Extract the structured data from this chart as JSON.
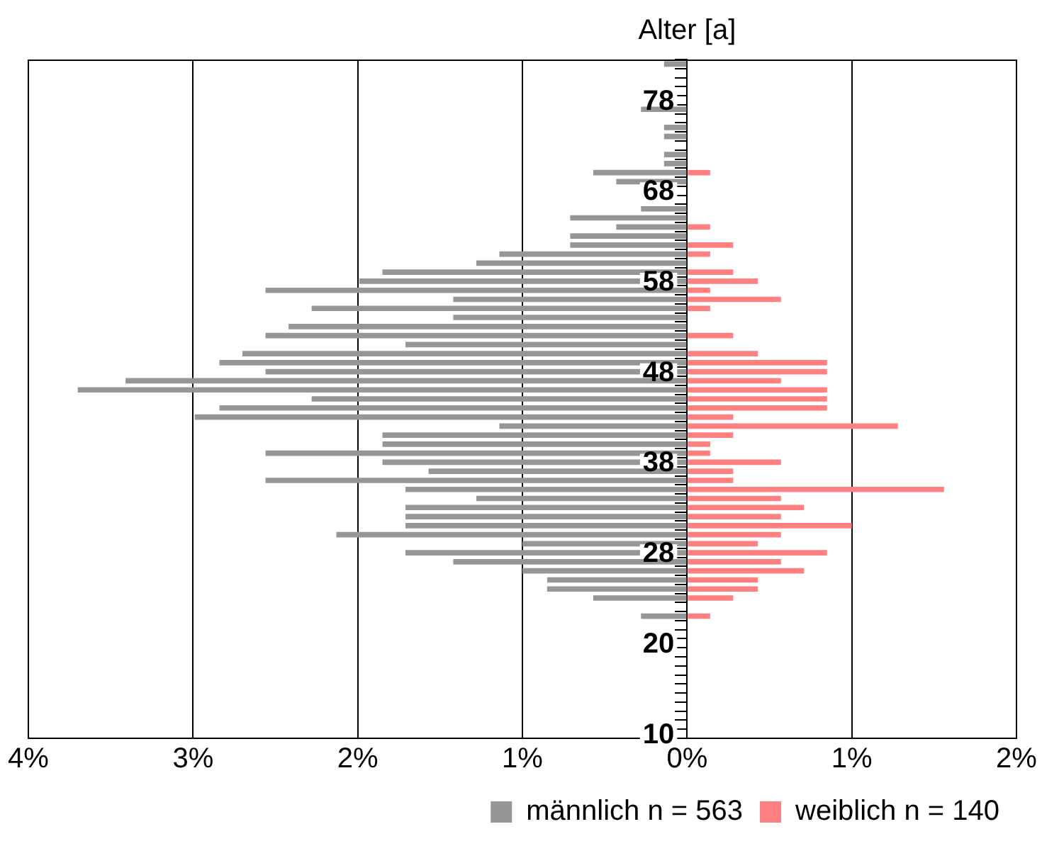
{
  "chart_data": {
    "type": "bar",
    "orientation": "horizontal",
    "ylabel": "Alter [a]",
    "categories": [
      null,
      null,
      null,
      null,
      "78",
      null,
      null,
      null,
      null,
      null,
      null,
      null,
      null,
      null,
      "68",
      null,
      null,
      null,
      null,
      null,
      null,
      null,
      null,
      null,
      "58",
      null,
      null,
      null,
      null,
      null,
      null,
      null,
      null,
      null,
      "48",
      null,
      null,
      null,
      null,
      null,
      null,
      null,
      null,
      null,
      "38",
      null,
      null,
      null,
      null,
      null,
      null,
      null,
      null,
      null,
      "28",
      null,
      null,
      null,
      null,
      null,
      null,
      null,
      null,
      null,
      "20",
      null,
      null,
      null,
      null,
      null,
      null,
      null,
      null,
      null,
      "10"
    ],
    "series": [
      {
        "name": "männlich n = 563",
        "color": "#969696",
        "values": [
          -0.14,
          null,
          null,
          null,
          null,
          -0.28,
          null,
          -0.14,
          -0.14,
          null,
          -0.14,
          -0.14,
          -0.57,
          -0.43,
          null,
          null,
          -0.28,
          -0.71,
          -0.43,
          -0.71,
          -0.71,
          -1.14,
          -1.28,
          -1.85,
          -1.99,
          -2.56,
          -1.42,
          -2.28,
          -1.42,
          -2.42,
          -2.56,
          -1.71,
          -2.7,
          -2.84,
          -2.56,
          -3.41,
          -3.7,
          -2.28,
          -2.84,
          -2.99,
          -1.14,
          -1.85,
          -1.85,
          -2.56,
          -1.85,
          -1.57,
          -2.56,
          -1.71,
          -1.28,
          -1.71,
          -1.71,
          -1.71,
          -2.13,
          -1.0,
          -1.71,
          -1.42,
          -1.0,
          -0.85,
          -0.85,
          -0.57,
          null,
          -0.28,
          null,
          null,
          null,
          null,
          null,
          null,
          null,
          null,
          null,
          null,
          null,
          null,
          null
        ]
      },
      {
        "name": "weiblich n = 140",
        "color": "#ff8080",
        "values": [
          null,
          null,
          null,
          null,
          null,
          null,
          null,
          null,
          null,
          null,
          null,
          null,
          0.14,
          null,
          null,
          null,
          null,
          null,
          0.14,
          null,
          0.28,
          0.14,
          null,
          0.28,
          0.43,
          0.14,
          0.57,
          0.14,
          null,
          null,
          0.28,
          null,
          0.43,
          0.85,
          0.85,
          0.57,
          0.85,
          0.85,
          0.85,
          0.28,
          1.28,
          0.28,
          0.14,
          0.14,
          0.57,
          0.28,
          0.28,
          1.56,
          0.57,
          0.71,
          0.57,
          1.0,
          0.57,
          0.43,
          0.85,
          0.57,
          0.71,
          0.43,
          0.43,
          0.28,
          null,
          0.14,
          null,
          null,
          null,
          null,
          null,
          null,
          null,
          null,
          null,
          null,
          null,
          null,
          null
        ]
      }
    ],
    "xlim": [
      -4,
      2
    ],
    "xticks": [
      {
        "value": -4,
        "label": "4%"
      },
      {
        "value": -3,
        "label": "3%"
      },
      {
        "value": -2,
        "label": "2%"
      },
      {
        "value": -1,
        "label": "1%"
      },
      {
        "value": 0,
        "label": "0%"
      },
      {
        "value": 1,
        "label": "1%"
      },
      {
        "value": 2,
        "label": "2%"
      }
    ],
    "stacked": true,
    "grid": "x",
    "legend": "bottom right"
  }
}
